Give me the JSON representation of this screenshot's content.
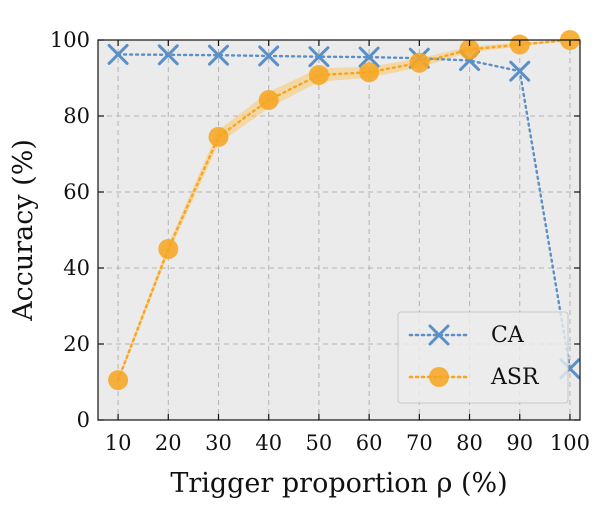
{
  "chart_data": {
    "type": "line",
    "title": "",
    "xlabel": "Trigger proportion ρ (%)",
    "ylabel": "Accuracy (%)",
    "x": [
      10,
      20,
      30,
      40,
      50,
      60,
      70,
      80,
      90,
      100
    ],
    "x_tick_labels": [
      "10",
      "20",
      "30",
      "40",
      "50",
      "60",
      "70",
      "80",
      "90",
      "100"
    ],
    "y_ticks": [
      0,
      20,
      40,
      60,
      80,
      100
    ],
    "y_tick_labels": [
      "0",
      "20",
      "40",
      "60",
      "80",
      "100"
    ],
    "xlim": [
      6,
      102
    ],
    "ylim": [
      0,
      100
    ],
    "grid": true,
    "legend_position": "bottom-right",
    "series": [
      {
        "name": "CA",
        "marker": "x",
        "line_style": "dotted",
        "color": "#5b8fc7",
        "values": [
          96.2,
          96.1,
          96.0,
          95.8,
          95.6,
          95.5,
          95.2,
          94.6,
          91.8,
          13.5
        ]
      },
      {
        "name": "ASR",
        "marker": "circle",
        "line_style": "dotted",
        "color": "#f6a623",
        "band_color": "#f9c66b",
        "values": [
          10.5,
          45.0,
          74.5,
          84.2,
          90.8,
          91.5,
          94.0,
          97.5,
          98.8,
          100.0
        ],
        "band_half_width": [
          0.8,
          1.3,
          1.8,
          2.1,
          1.8,
          1.4,
          1.2,
          0.8,
          0.5,
          0.2
        ]
      }
    ]
  }
}
